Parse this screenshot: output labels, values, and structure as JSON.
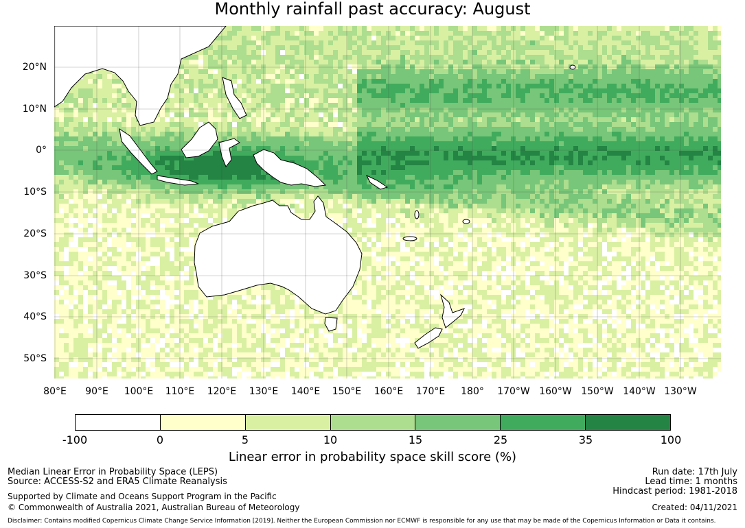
{
  "title": "Monthly rainfall past accuracy: August",
  "map": {
    "lat_labels": [
      "20°N",
      "10°N",
      "0°",
      "10°S",
      "20°S",
      "30°S",
      "40°S",
      "50°S"
    ],
    "lon_labels": [
      "80°E",
      "90°E",
      "100°E",
      "110°E",
      "120°E",
      "130°E",
      "140°E",
      "150°E",
      "160°E",
      "170°E",
      "180°",
      "170°W",
      "160°W",
      "150°W",
      "140°W",
      "130°W"
    ],
    "land_color": "#ffffff",
    "coastline_color": "#000000"
  },
  "colorbar": {
    "colors": [
      "#ffffff",
      "#ffffcc",
      "#d9f0a3",
      "#addd8e",
      "#78c679",
      "#41ab5d",
      "#238443"
    ],
    "ticks": [
      "-100",
      "0",
      "5",
      "10",
      "15",
      "25",
      "35",
      "100"
    ],
    "label": "Linear error in probability space skill score (%)"
  },
  "footer": {
    "left_line1": "Median Linear Error in Probability Space (LEPS)",
    "left_line2": "Source: ACCESS-S2 and ERA5 Climate Reanalysis",
    "left_line3": "Supported by Climate and Oceans Support Program in the Pacific",
    "left_line4": "© Commonwealth of Australia 2021, Australian Bureau of Meteorology",
    "right_line1": "Run date: 17th July",
    "right_line2": "Lead time: 1 months",
    "right_line3": "Hindcast period: 1981-2018",
    "right_line4": "Created: 04/11/2021",
    "disclaimer": "Disclaimer: Contains modified Copernicus Climate Change Service Information [2019]. Neither the European Commission nor ECMWF is responsible for any use that may be made of the Copernicus Information or Data it contains."
  }
}
